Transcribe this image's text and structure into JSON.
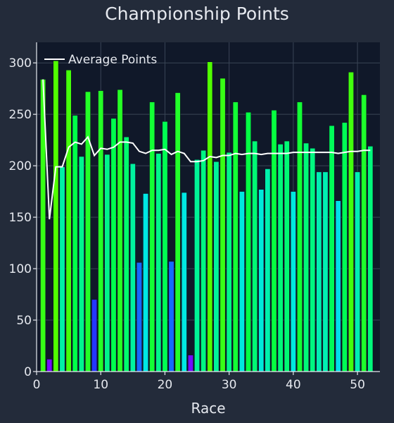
{
  "chart_data": {
    "type": "bar",
    "title": "Championship Points",
    "xlabel": "Race",
    "ylabel": "",
    "xlim": [
      0,
      53.5
    ],
    "ylim": [
      0,
      320
    ],
    "x_ticks": [
      0,
      10,
      20,
      30,
      40,
      50
    ],
    "y_ticks": [
      0,
      50,
      100,
      150,
      200,
      250,
      300
    ],
    "grid": true,
    "legend_position": "top-left",
    "colorscale": "value-mapped: low=purple, mid=blue/cyan, high=green",
    "series": [
      {
        "kind": "bar",
        "x": [
          1,
          2,
          3,
          4,
          5,
          6,
          7,
          8,
          9,
          10,
          11,
          12,
          13,
          14,
          15,
          16,
          17,
          18,
          19,
          20,
          21,
          22,
          23,
          24,
          25,
          26,
          27,
          28,
          29,
          30,
          31,
          32,
          33,
          34,
          35,
          36,
          37,
          38,
          39,
          40,
          41,
          42,
          43,
          44,
          45,
          46,
          47,
          48,
          49,
          50,
          51,
          52
        ],
        "values": [
          284,
          12,
          302,
          199,
          293,
          249,
          209,
          272,
          70,
          273,
          211,
          246,
          274,
          228,
          202,
          106,
          173,
          262,
          212,
          243,
          107,
          271,
          174,
          16,
          206,
          215,
          301,
          204,
          285,
          213,
          262,
          175,
          252,
          224,
          177,
          197,
          254,
          221,
          224,
          175,
          262,
          222,
          217,
          194,
          194,
          239,
          166,
          242,
          291,
          194,
          269,
          219
        ]
      },
      {
        "kind": "line",
        "name": "Average Points",
        "x": [
          1,
          2,
          3,
          4,
          5,
          6,
          7,
          8,
          9,
          10,
          11,
          12,
          13,
          14,
          15,
          16,
          17,
          18,
          19,
          20,
          21,
          22,
          23,
          24,
          25,
          26,
          27,
          28,
          29,
          30,
          31,
          32,
          33,
          34,
          35,
          36,
          37,
          38,
          39,
          40,
          41,
          42,
          43,
          44,
          45,
          46,
          47,
          48,
          49,
          50,
          51,
          52
        ],
        "values": [
          284,
          148,
          199,
          199,
          218,
          223,
          221,
          228,
          210,
          217,
          216,
          218,
          223,
          223,
          222,
          214,
          212,
          215,
          215,
          216,
          211,
          214,
          212,
          204,
          204,
          205,
          209,
          208,
          210,
          210,
          212,
          211,
          212,
          212,
          211,
          212,
          212,
          212,
          212,
          213,
          213,
          213,
          213,
          213,
          213,
          213,
          212,
          213,
          214,
          214,
          215,
          215
        ],
        "color": "#ffffff"
      }
    ]
  }
}
